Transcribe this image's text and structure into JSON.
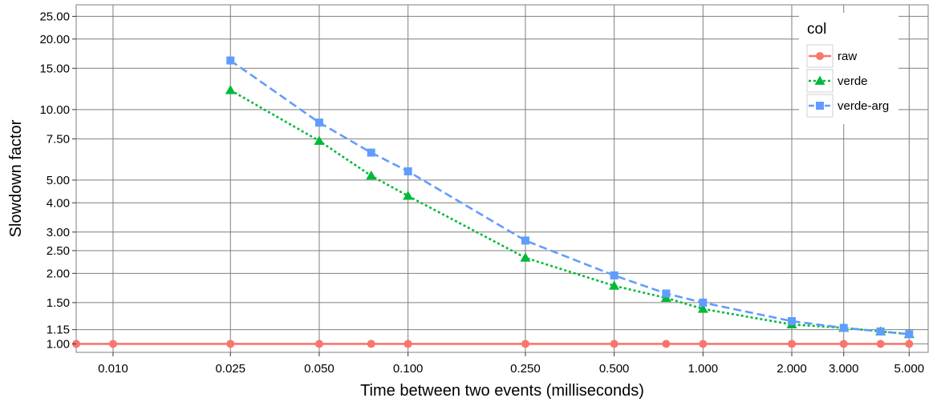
{
  "chart_data": {
    "type": "line",
    "title": "",
    "xlabel": "Time between two events (milliseconds)",
    "ylabel": "Slowdown factor",
    "x_scale": "log",
    "y_scale": "log",
    "xlim": [
      0.0075,
      5.8
    ],
    "ylim": [
      0.92,
      28
    ],
    "x_ticks": [
      0.01,
      0.025,
      0.05,
      0.1,
      0.25,
      0.5,
      1,
      2,
      3,
      5
    ],
    "x_tick_labels": [
      "0.010",
      "0.025",
      "0.050",
      "0.100",
      "0.250",
      "0.500",
      "1.000",
      "2.000",
      "3.000",
      "5.000"
    ],
    "y_ticks": [
      1,
      1.15,
      1.5,
      2,
      2.5,
      3,
      4,
      5,
      7.5,
      10,
      15,
      20,
      25
    ],
    "y_tick_labels": [
      "1.00",
      "1.15",
      "1.50",
      "2.00",
      "2.50",
      "3.00",
      "4.00",
      "5.00",
      "7.50",
      "10.00",
      "15.00",
      "20.00",
      "25.00"
    ],
    "grid": true,
    "legend_title": "col",
    "legend_position": "top-right",
    "series": [
      {
        "name": "raw",
        "color": "#F8766D",
        "marker": "circle",
        "line_style": "solid",
        "x": [
          0.0075,
          0.01,
          0.025,
          0.05,
          0.075,
          0.1,
          0.25,
          0.5,
          0.75,
          1,
          2,
          3,
          4,
          5
        ],
        "y": [
          1.0,
          1.0,
          1.0,
          1.0,
          1.0,
          1.0,
          1.0,
          1.0,
          1.0,
          1.0,
          1.0,
          1.0,
          1.0,
          1.0
        ]
      },
      {
        "name": "verde",
        "color": "#00BA38",
        "marker": "triangle",
        "line_style": "dotted",
        "x": [
          0.025,
          0.05,
          0.075,
          0.1,
          0.25,
          0.5,
          0.75,
          1,
          2,
          3,
          4,
          5
        ],
        "y": [
          12.1,
          7.35,
          5.22,
          4.28,
          2.33,
          1.77,
          1.57,
          1.41,
          1.21,
          1.17,
          1.13,
          1.1
        ]
      },
      {
        "name": "verde-arg",
        "color": "#619CFF",
        "marker": "square",
        "line_style": "dashed",
        "x": [
          0.025,
          0.05,
          0.075,
          0.1,
          0.25,
          0.5,
          0.75,
          1,
          2,
          3,
          4,
          5
        ],
        "y": [
          16.2,
          8.8,
          6.55,
          5.45,
          2.76,
          1.96,
          1.64,
          1.5,
          1.25,
          1.17,
          1.13,
          1.1
        ]
      }
    ]
  }
}
